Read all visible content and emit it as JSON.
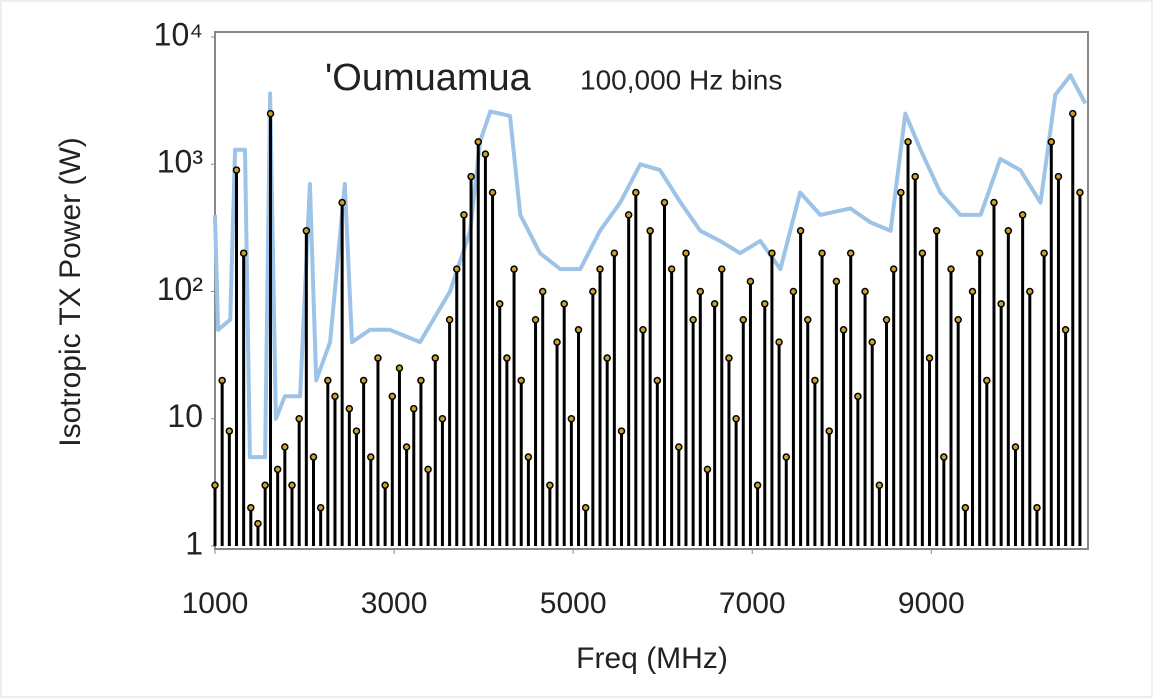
{
  "chart_data": {
    "type": "scatter",
    "annotations": [
      "'Oumuamua",
      "100,000 Hz bins"
    ],
    "xlabel": "Freq (MHz)",
    "ylabel": "Isotropic TX  Power (W)",
    "xlim": [
      1000,
      10750
    ],
    "xticks": [
      1000,
      3000,
      5000,
      7000,
      9000
    ],
    "ylim": [
      1,
      10000
    ],
    "ylog": true,
    "yticks": [
      1,
      10,
      {
        "value": 100,
        "label": "10²"
      },
      {
        "value": 1000,
        "label": "10³"
      },
      {
        "value": 10000,
        "label": "10⁴"
      }
    ],
    "series": [
      {
        "kind": "line",
        "color": "#9dc3e6",
        "x": [
          1000,
          1035,
          1170,
          1225,
          1335,
          1390,
          1560,
          1615,
          1680,
          1780,
          1950,
          2060,
          2130,
          2285,
          2450,
          2530,
          2730,
          2955,
          3290,
          3625,
          3850,
          3960,
          4075,
          4295,
          4410,
          4630,
          4855,
          5080,
          5300,
          5525,
          5750,
          5970,
          6200,
          6420,
          6640,
          6865,
          7090,
          7315,
          7535,
          7760,
          8095,
          8320,
          8545,
          8710,
          8880,
          9100,
          9325,
          9550,
          9770,
          9995,
          10220,
          10385,
          10553,
          10720
        ],
        "values": [
          400,
          50,
          60,
          1300,
          1300,
          5,
          5,
          3600,
          10,
          15,
          15,
          700,
          20,
          40,
          700,
          40,
          50,
          50,
          40,
          100,
          300,
          1500,
          2600,
          2400,
          400,
          200,
          150,
          150,
          300,
          500,
          1000,
          900,
          500,
          300,
          250,
          200,
          250,
          150,
          600,
          400,
          450,
          350,
          300,
          2500,
          1300,
          600,
          400,
          400,
          1100,
          900,
          500,
          3500,
          5000,
          3000
        ]
      },
      {
        "kind": "points",
        "color": "#c9a227",
        "x": [
          1000,
          1080,
          1160,
          1240,
          1320,
          1400,
          1480,
          1560,
          1620,
          1700,
          1780,
          1860,
          1940,
          2020,
          2100,
          2180,
          2260,
          2340,
          2420,
          2500,
          2580,
          2660,
          2740,
          2820,
          2900,
          2980,
          3060,
          3140,
          3220,
          3300,
          3380,
          3460,
          3540,
          3620,
          3700,
          3780,
          3860,
          3940,
          4020,
          4100,
          4180,
          4260,
          4340,
          4420,
          4500,
          4580,
          4660,
          4740,
          4820,
          4900,
          4980,
          5060,
          5140,
          5220,
          5300,
          5380,
          5460,
          5540,
          5620,
          5700,
          5780,
          5860,
          5940,
          6020,
          6100,
          6180,
          6260,
          6340,
          6420,
          6500,
          6580,
          6660,
          6740,
          6820,
          6900,
          6980,
          7060,
          7140,
          7220,
          7300,
          7380,
          7460,
          7540,
          7620,
          7700,
          7780,
          7860,
          7940,
          8020,
          8100,
          8180,
          8260,
          8340,
          8420,
          8500,
          8580,
          8660,
          8740,
          8820,
          8900,
          8980,
          9060,
          9140,
          9220,
          9300,
          9380,
          9460,
          9540,
          9620,
          9700,
          9780,
          9860,
          9940,
          10020,
          10100,
          10180,
          10260,
          10340,
          10420,
          10500,
          10580,
          10660
        ],
        "values": [
          3,
          20,
          8,
          900,
          200,
          2,
          1.5,
          3,
          2500,
          4,
          6,
          3,
          10,
          300,
          5,
          2,
          20,
          15,
          500,
          12,
          8,
          20,
          5,
          30,
          3,
          15,
          25,
          6,
          12,
          20,
          4,
          30,
          10,
          60,
          150,
          400,
          800,
          1500,
          1200,
          600,
          80,
          30,
          150,
          20,
          5,
          60,
          100,
          3,
          40,
          80,
          10,
          50,
          2,
          100,
          150,
          30,
          200,
          8,
          400,
          600,
          50,
          300,
          20,
          500,
          150,
          6,
          200,
          60,
          100,
          4,
          80,
          150,
          30,
          10,
          60,
          120,
          3,
          80,
          200,
          40,
          5,
          100,
          300,
          60,
          20,
          200,
          8,
          120,
          50,
          200,
          15,
          100,
          40,
          3,
          60,
          150,
          600,
          1500,
          800,
          200,
          30,
          300,
          5,
          150,
          60,
          2,
          100,
          200,
          20,
          500,
          80,
          300,
          6,
          400,
          100,
          2,
          200,
          1500,
          800,
          50,
          2500,
          600
        ]
      }
    ]
  }
}
